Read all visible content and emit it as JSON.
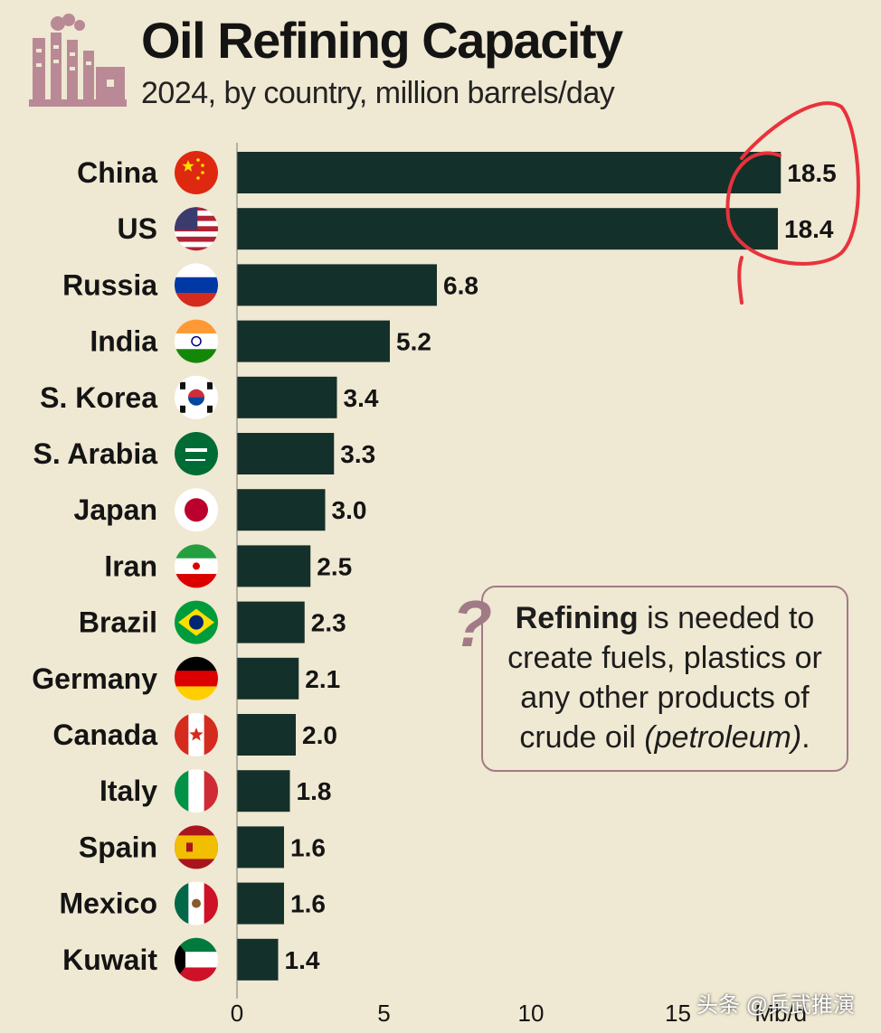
{
  "header": {
    "title": "Oil Refining Capacity",
    "subtitle": "2024, by country, million barrels/day"
  },
  "info_box": {
    "bold": "Refining",
    "line1_rest": " is needed to",
    "line2": "create fuels, plastics or",
    "line3": "any other products of",
    "line4_a": "crude oil ",
    "line4_italic": "(petroleum)",
    "line4_b": "."
  },
  "watermark": "头条 @兵武推演",
  "colors": {
    "bar": "#14302a",
    "background": "#efe8d2",
    "accent": "#a27a87",
    "annotation": "#e8323c"
  },
  "chart_data": {
    "type": "bar",
    "orientation": "horizontal",
    "title": "Oil Refining Capacity",
    "subtitle": "2024, by country, million barrels/day",
    "categories": [
      "China",
      "US",
      "Russia",
      "India",
      "S. Korea",
      "S. Arabia",
      "Japan",
      "Iran",
      "Brazil",
      "Germany",
      "Canada",
      "Italy",
      "Spain",
      "Mexico",
      "Kuwait"
    ],
    "values": [
      18.5,
      18.4,
      6.8,
      5.2,
      3.4,
      3.3,
      3.0,
      2.5,
      2.3,
      2.1,
      2.0,
      1.8,
      1.6,
      1.6,
      1.4
    ],
    "value_labels": [
      "18.5",
      "18.4",
      "6.8",
      "5.2",
      "3.4",
      "3.3",
      "3.0",
      "2.5",
      "2.3",
      "2.1",
      "2.0",
      "1.8",
      "1.6",
      "1.6",
      "1.4"
    ],
    "xticks": [
      "0",
      "5",
      "10",
      "15"
    ],
    "xtick_values": [
      0,
      5,
      10,
      15
    ],
    "xunit": "Mb/d",
    "xlim": [
      0,
      20
    ],
    "flags": [
      "china-flag-icon",
      "us-flag-icon",
      "russia-flag-icon",
      "india-flag-icon",
      "south-korea-flag-icon",
      "saudi-arabia-flag-icon",
      "japan-flag-icon",
      "iran-flag-icon",
      "brazil-flag-icon",
      "germany-flag-icon",
      "canada-flag-icon",
      "italy-flag-icon",
      "spain-flag-icon",
      "mexico-flag-icon",
      "kuwait-flag-icon"
    ]
  }
}
